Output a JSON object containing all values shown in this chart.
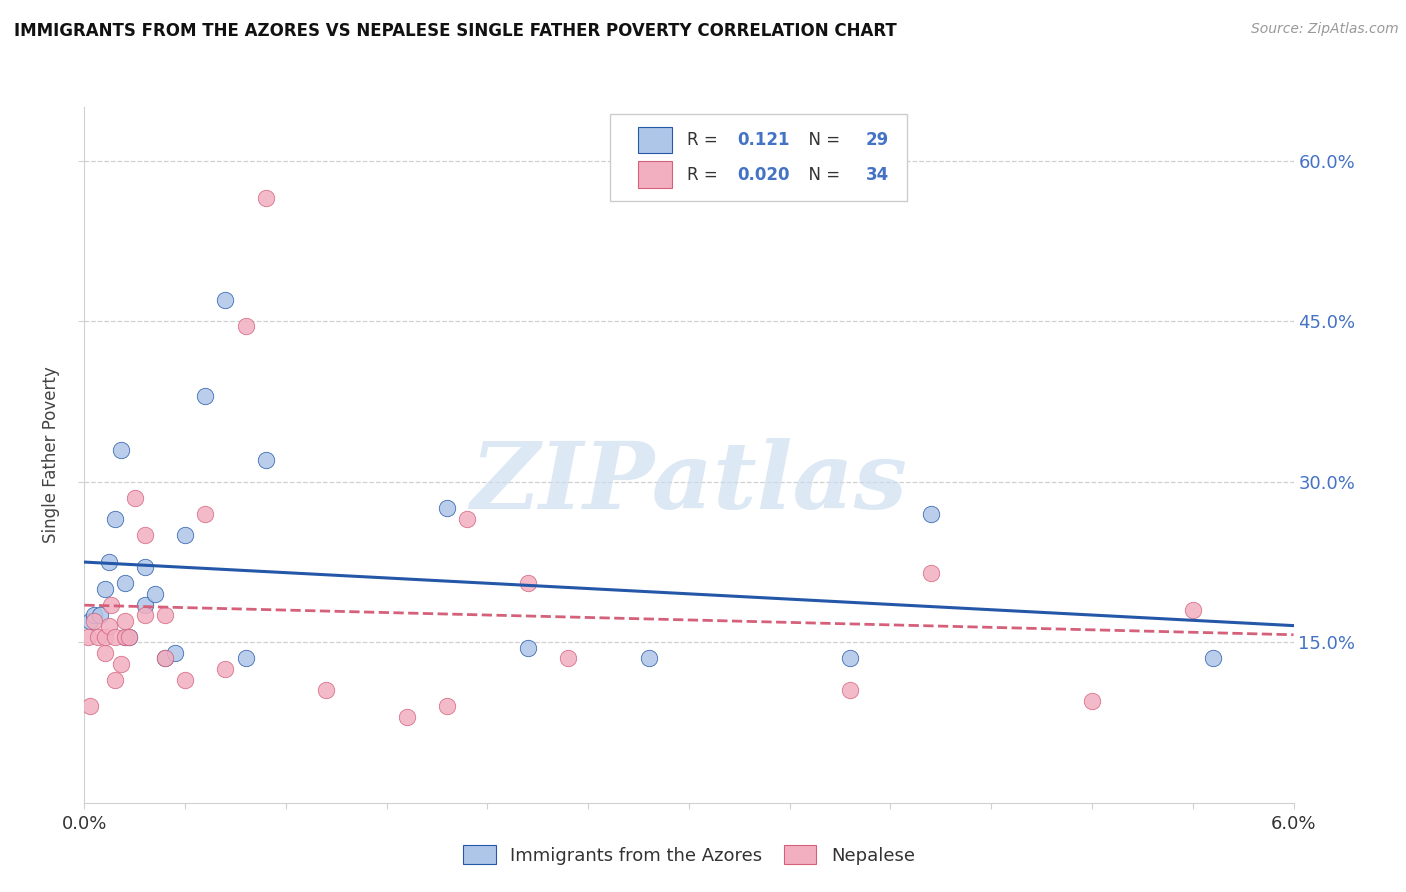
{
  "title": "IMMIGRANTS FROM THE AZORES VS NEPALESE SINGLE FATHER POVERTY CORRELATION CHART",
  "source": "Source: ZipAtlas.com",
  "ylabel": "Single Father Poverty",
  "legend1_label": "Immigrants from the Azores",
  "legend2_label": "Nepalese",
  "r1": 0.121,
  "n1": 29,
  "r2": 0.02,
  "n2": 34,
  "color_blue": "#aec6e8",
  "color_pink": "#f2afc0",
  "line_blue": "#2457a8",
  "line_pink": "#d4607a",
  "scatter_alpha": 0.85,
  "watermark": "ZIPatlas",
  "blue_x": [
    0.0003,
    0.0005,
    0.0008,
    0.001,
    0.0012,
    0.0015,
    0.0018,
    0.002,
    0.002,
    0.0022,
    0.003,
    0.003,
    0.0035,
    0.004,
    0.0045,
    0.005,
    0.006,
    0.007,
    0.008,
    0.009,
    0.018,
    0.022,
    0.028,
    0.038,
    0.042,
    0.056
  ],
  "blue_y": [
    0.17,
    0.175,
    0.175,
    0.2,
    0.225,
    0.265,
    0.33,
    0.155,
    0.205,
    0.155,
    0.22,
    0.185,
    0.195,
    0.135,
    0.14,
    0.25,
    0.38,
    0.47,
    0.135,
    0.32,
    0.275,
    0.145,
    0.135,
    0.135,
    0.27,
    0.135
  ],
  "pink_x": [
    0.0002,
    0.0003,
    0.0005,
    0.0007,
    0.001,
    0.001,
    0.0012,
    0.0013,
    0.0015,
    0.0015,
    0.0018,
    0.002,
    0.002,
    0.0022,
    0.0025,
    0.003,
    0.003,
    0.004,
    0.004,
    0.005,
    0.006,
    0.007,
    0.008,
    0.009,
    0.012,
    0.016,
    0.018,
    0.019,
    0.022,
    0.024,
    0.038,
    0.042,
    0.05,
    0.055
  ],
  "pink_y": [
    0.155,
    0.09,
    0.17,
    0.155,
    0.14,
    0.155,
    0.165,
    0.185,
    0.115,
    0.155,
    0.13,
    0.155,
    0.17,
    0.155,
    0.285,
    0.175,
    0.25,
    0.135,
    0.175,
    0.115,
    0.27,
    0.125,
    0.445,
    0.565,
    0.105,
    0.08,
    0.09,
    0.265,
    0.205,
    0.135,
    0.105,
    0.215,
    0.095,
    0.18
  ],
  "ytick_vals": [
    0.15,
    0.3,
    0.45,
    0.6
  ],
  "xmin": 0.0,
  "xmax": 0.06,
  "ymin": 0.0,
  "ymax": 0.65,
  "grid_color": "#d0d0d0",
  "tick_color": "#999999"
}
